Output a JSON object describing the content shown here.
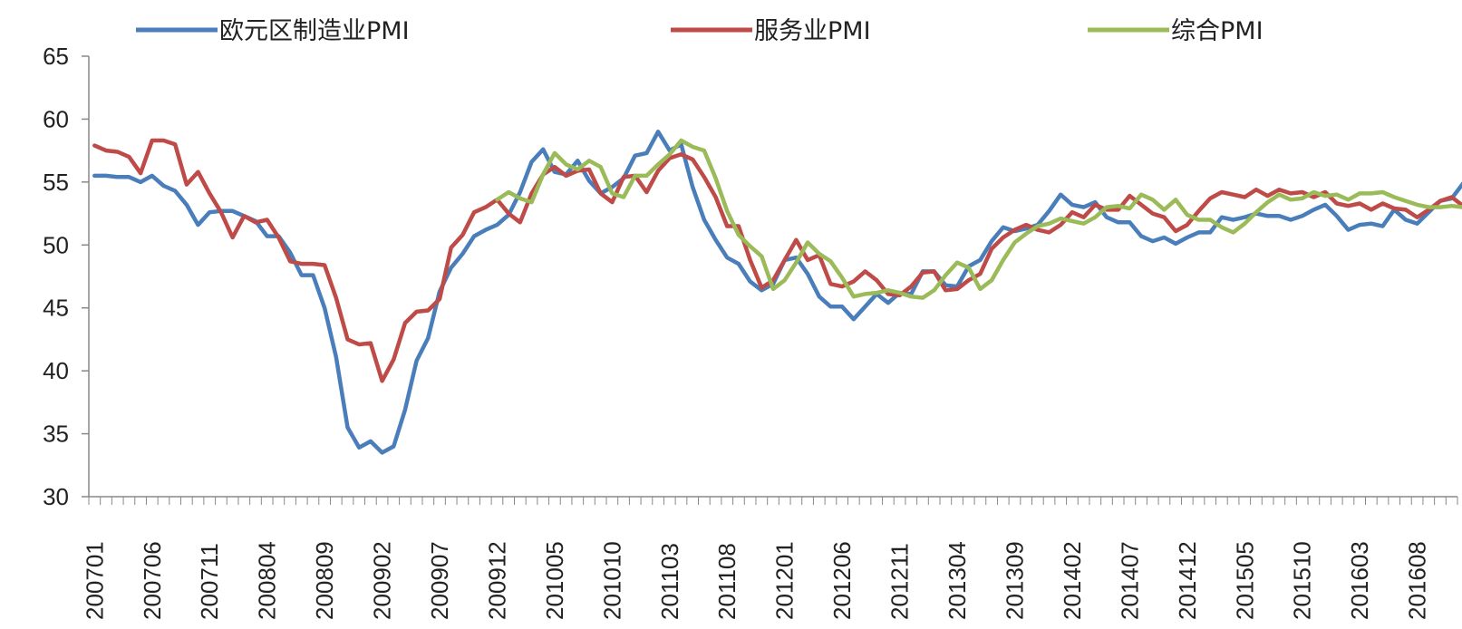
{
  "chart_data": {
    "type": "line",
    "title": "",
    "xlabel": "",
    "ylabel": "",
    "ylim": [
      30,
      65
    ],
    "yticks": [
      30,
      35,
      40,
      45,
      50,
      55,
      60,
      65
    ],
    "grid": false,
    "legend_position": "top",
    "x_start": "200701",
    "x_end": "201611",
    "x_tick_labels": [
      "200701",
      "200706",
      "200711",
      "200804",
      "200809",
      "200902",
      "200907",
      "200912",
      "201005",
      "201010",
      "201103",
      "201108",
      "201201",
      "201206",
      "201211",
      "201304",
      "201309",
      "201402",
      "201407",
      "201412",
      "201505",
      "201510",
      "201603",
      "201608"
    ],
    "series": [
      {
        "name": "欧元区制造业PMI",
        "color": "#4a7ebb",
        "start": "200701",
        "values": [
          55.5,
          55.5,
          55.4,
          55.4,
          55.0,
          55.5,
          54.7,
          54.3,
          53.2,
          51.6,
          52.6,
          52.7,
          52.7,
          52.3,
          51.9,
          50.7,
          50.7,
          49.4,
          47.6,
          47.6,
          45.0,
          41.1,
          35.5,
          33.9,
          34.4,
          33.5,
          34.0,
          36.9,
          40.8,
          42.6,
          46.3,
          48.2,
          49.3,
          50.7,
          51.2,
          51.6,
          52.4,
          54.2,
          56.6,
          57.6,
          55.8,
          55.6,
          56.7,
          55.1,
          54.1,
          54.6,
          55.3,
          57.1,
          57.3,
          59.0,
          57.5,
          58.0,
          54.6,
          52.0,
          50.4,
          49.0,
          48.5,
          47.1,
          46.4,
          46.9,
          48.8,
          49.0,
          47.7,
          45.9,
          45.1,
          45.1,
          44.1,
          45.1,
          46.1,
          45.4,
          46.2,
          46.1,
          47.9,
          47.9,
          46.8,
          46.7,
          48.3,
          48.8,
          50.3,
          51.4,
          51.1,
          51.3,
          51.6,
          52.7,
          54.0,
          53.2,
          53.0,
          53.4,
          52.2,
          51.8,
          51.8,
          50.7,
          50.3,
          50.6,
          50.1,
          50.6,
          51.0,
          51.0,
          52.2,
          52.0,
          52.2,
          52.5,
          52.3,
          52.3,
          52.0,
          52.3,
          52.8,
          53.2,
          52.3,
          51.2,
          51.6,
          51.7,
          51.5,
          52.8,
          52.0,
          51.7,
          52.6,
          53.5,
          53.7,
          54.9
        ]
      },
      {
        "name": "服务业PMI",
        "color": "#be4b48",
        "start": "200701",
        "values": [
          57.9,
          57.5,
          57.4,
          57.0,
          55.7,
          58.3,
          58.3,
          58.0,
          54.8,
          55.8,
          54.1,
          52.6,
          50.6,
          52.3,
          51.8,
          52.0,
          50.6,
          48.7,
          48.5,
          48.5,
          48.4,
          45.8,
          42.5,
          42.1,
          42.2,
          39.2,
          40.9,
          43.8,
          44.7,
          44.8,
          45.7,
          49.8,
          50.8,
          52.6,
          53.0,
          53.6,
          52.5,
          51.8,
          54.1,
          55.6,
          56.2,
          55.5,
          55.9,
          56.0,
          54.1,
          53.4,
          55.4,
          55.5,
          54.2,
          55.9,
          56.9,
          57.2,
          56.8,
          55.4,
          53.8,
          51.5,
          51.5,
          48.8,
          46.6,
          47.2,
          48.8,
          50.4,
          48.8,
          49.2,
          46.9,
          46.7,
          47.1,
          47.9,
          47.2,
          46.1,
          46.0,
          46.7,
          47.8,
          47.9,
          46.4,
          46.5,
          47.2,
          47.7,
          49.7,
          50.6,
          51.2,
          51.6,
          51.2,
          51.0,
          51.6,
          52.6,
          52.2,
          53.2,
          52.8,
          52.8,
          53.9,
          53.2,
          52.5,
          52.2,
          51.1,
          51.6,
          52.7,
          53.7,
          54.2,
          54.0,
          53.8,
          54.4,
          53.9,
          54.4,
          54.1,
          54.2,
          53.8,
          54.2,
          53.3,
          53.1,
          53.3,
          52.8,
          53.3,
          52.9,
          52.8,
          52.2,
          52.8,
          53.5,
          53.8,
          53.1
        ]
      },
      {
        "name": "综合PMI",
        "color": "#9bbb59",
        "start": "200912",
        "values": [
          53.6,
          54.2,
          53.7,
          53.4,
          55.6,
          57.3,
          56.4,
          56.0,
          56.7,
          56.2,
          54.1,
          53.8,
          55.5,
          55.5,
          56.4,
          57.2,
          58.3,
          57.8,
          57.5,
          55.3,
          52.7,
          50.8,
          49.9,
          49.1,
          46.5,
          47.2,
          48.6,
          50.2,
          49.3,
          48.7,
          47.4,
          45.9,
          46.1,
          46.2,
          46.4,
          46.2,
          45.9,
          45.8,
          46.4,
          47.6,
          48.6,
          48.2,
          46.5,
          47.2,
          48.8,
          50.2,
          50.9,
          51.5,
          51.7,
          52.1,
          51.9,
          51.7,
          52.2,
          53.0,
          53.1,
          52.9,
          54.0,
          53.6,
          52.8,
          53.6,
          52.4,
          52.0,
          52.0,
          51.4,
          51.0,
          51.7,
          52.6,
          53.4,
          54.0,
          53.6,
          53.7,
          54.2,
          53.9,
          54.0,
          53.6,
          54.1,
          54.1,
          54.2,
          53.8,
          53.5,
          53.2,
          53.0,
          53.0,
          53.1,
          53.0,
          52.9,
          53.3,
          52.8,
          52.6,
          53.3,
          53.8,
          54.1
        ]
      }
    ]
  }
}
